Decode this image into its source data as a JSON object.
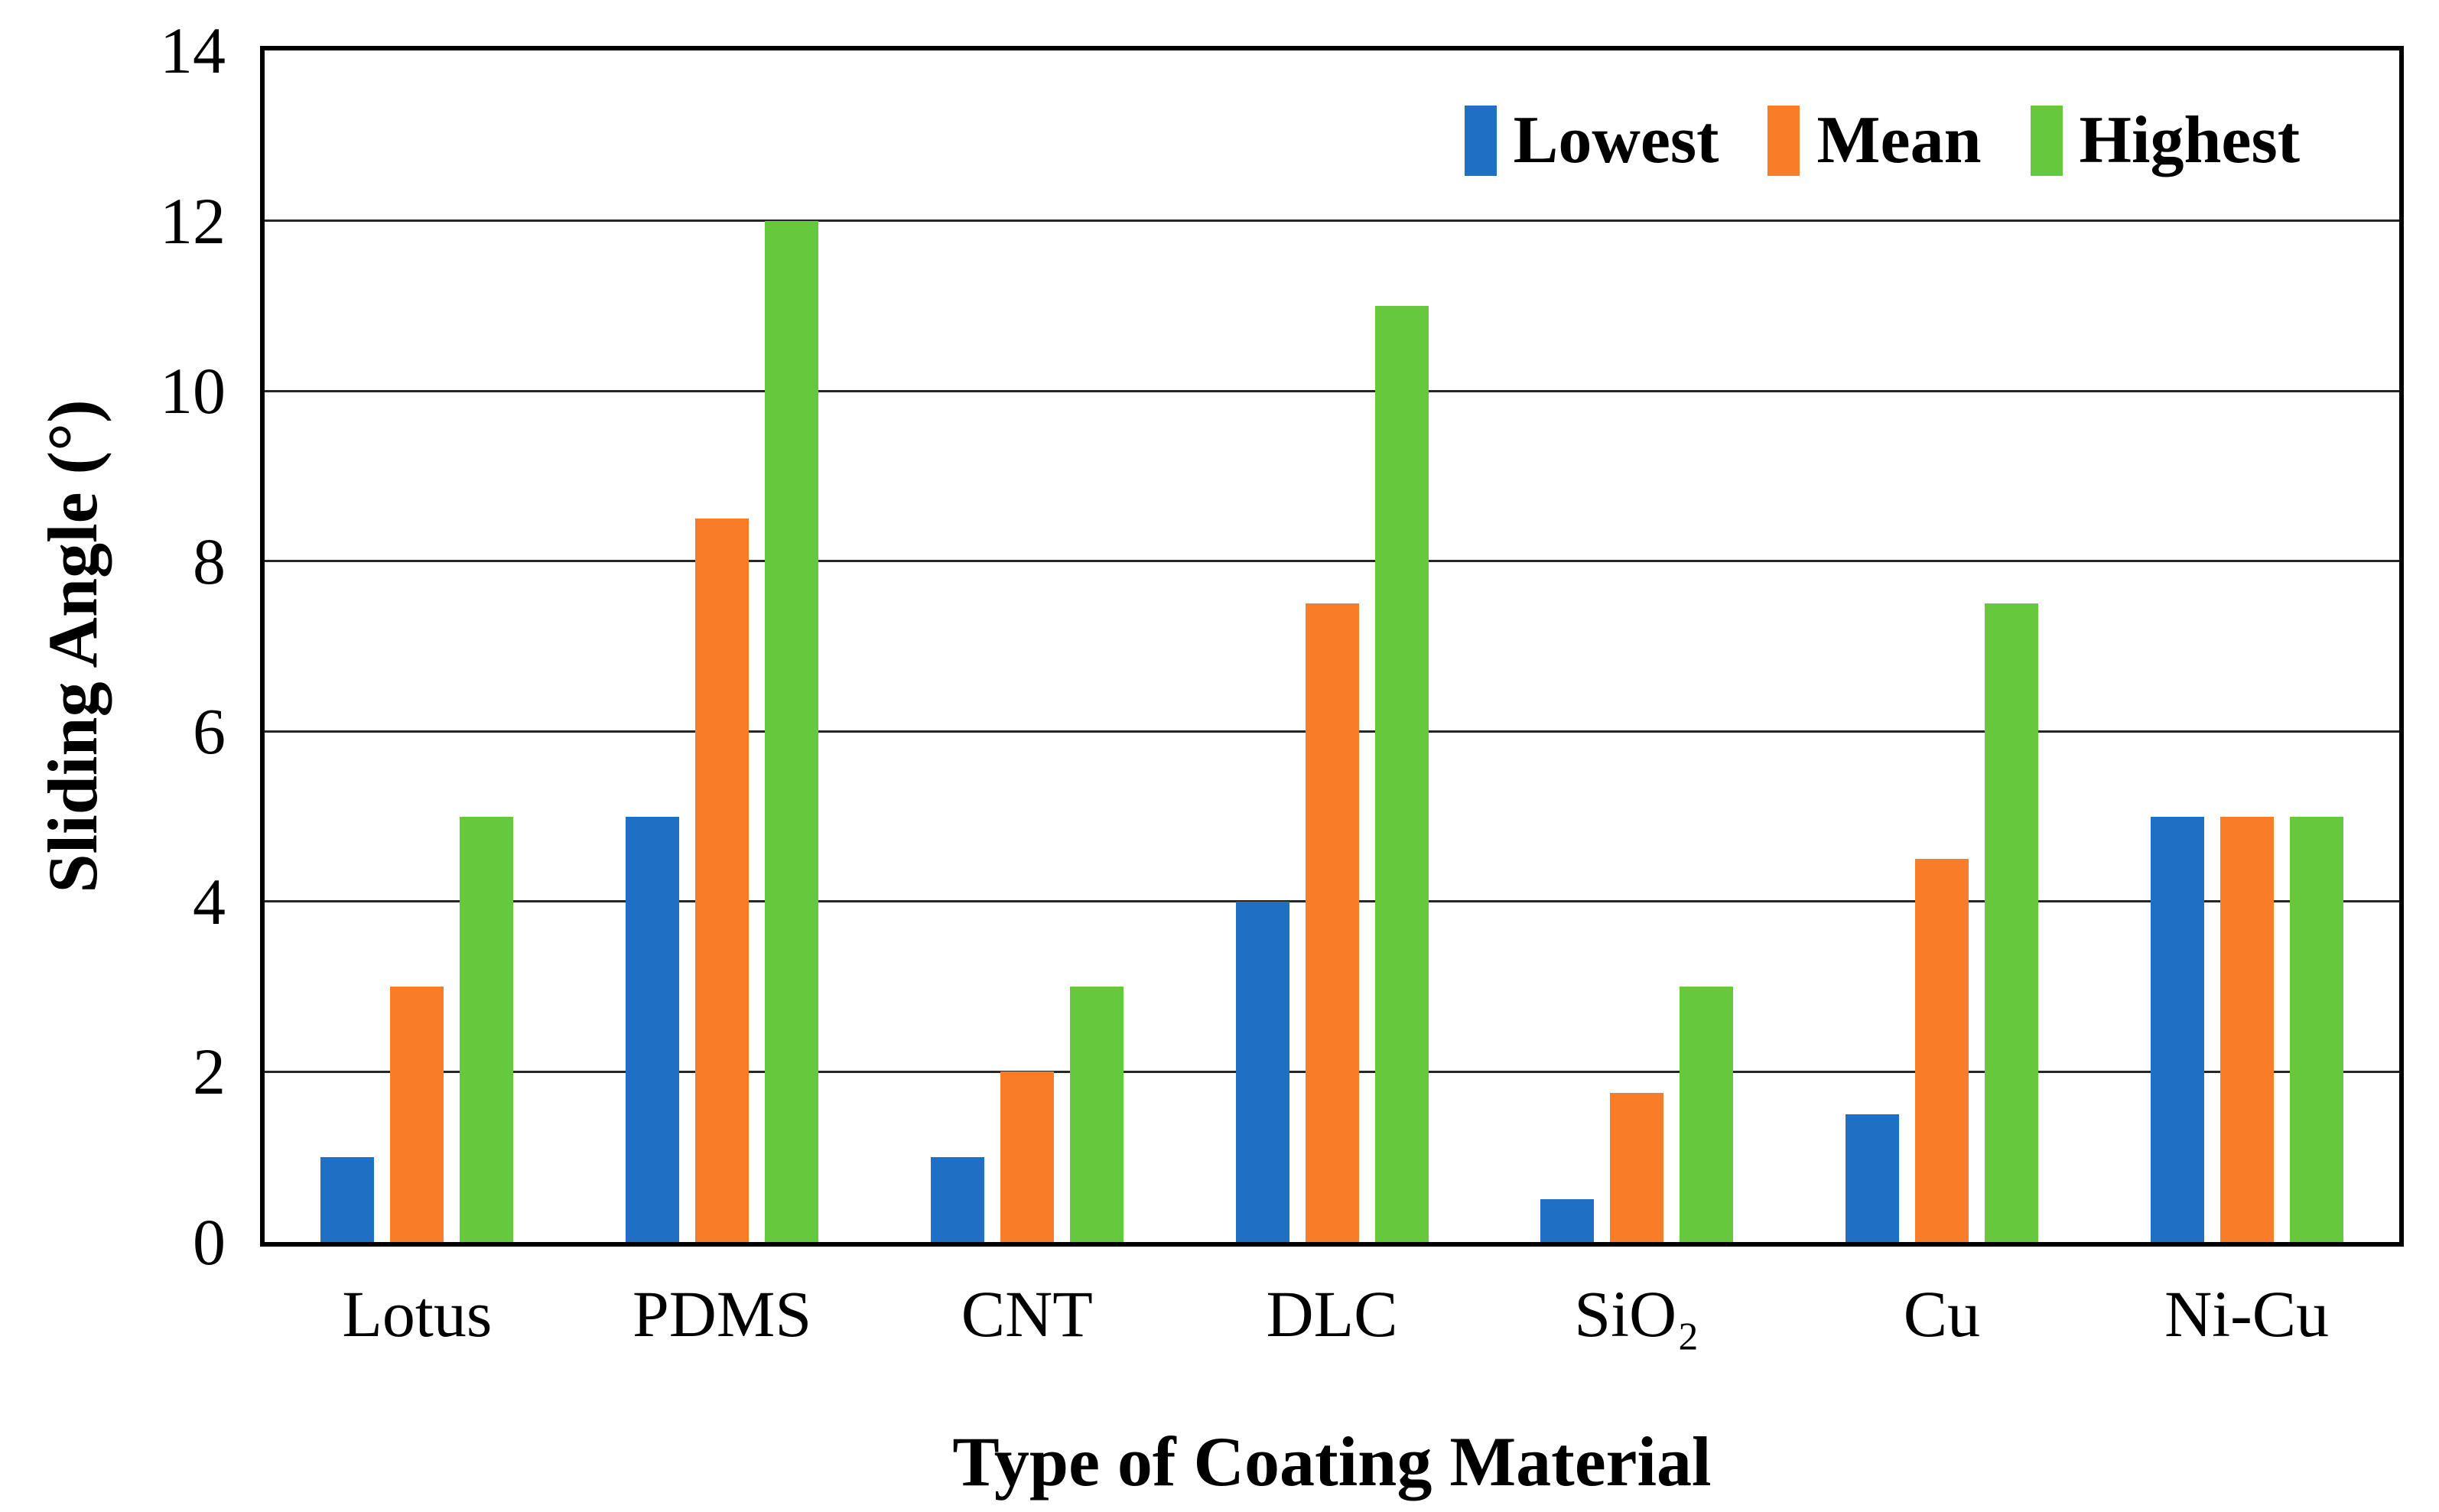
{
  "chart_data": {
    "type": "bar",
    "title": "",
    "xlabel": "Type of Coating Material",
    "ylabel": "Sliding Angle (°)",
    "categories": [
      "Lotus",
      "PDMS",
      "CNT",
      "DLC",
      "SiO₂",
      "Cu",
      "Ni-Cu"
    ],
    "series": [
      {
        "name": "Lowest",
        "color": "#1F70C4",
        "values": [
          1,
          5,
          1,
          4,
          0.5,
          1.5,
          5
        ]
      },
      {
        "name": "Mean",
        "color": "#F97D28",
        "values": [
          3,
          8.5,
          2,
          7.5,
          1.75,
          4.5,
          5
        ]
      },
      {
        "name": "Highest",
        "color": "#66C83C",
        "values": [
          5,
          12,
          3,
          11,
          3,
          7.5,
          5
        ]
      }
    ],
    "ylim": [
      0,
      14
    ],
    "yticks": [
      0,
      2,
      4,
      6,
      8,
      10,
      12,
      14
    ],
    "grid": "horizontal",
    "gridline_color": "#262626",
    "axis_color": "#000000",
    "legend_position": "top-right-inside"
  }
}
